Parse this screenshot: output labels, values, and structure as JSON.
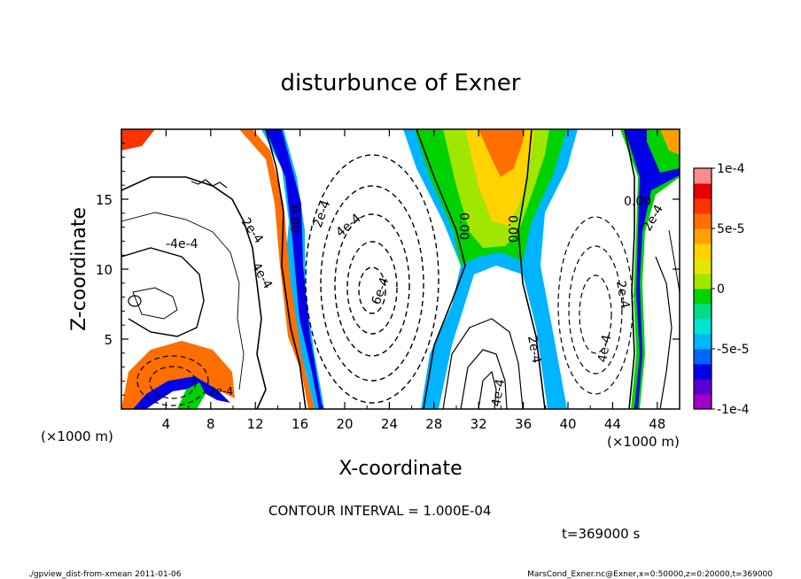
{
  "chart_data": {
    "type": "heatmap",
    "title": "disturbunce of Exner",
    "xlabel": "X-coordinate",
    "ylabel": "Z-coordinate",
    "x_unit_left": "(×1000 m)",
    "x_unit_right": "(×1000 m)",
    "xlim": [
      0,
      50
    ],
    "ylim": [
      0,
      20
    ],
    "x_ticks": [
      4,
      8,
      12,
      16,
      20,
      24,
      28,
      32,
      36,
      40,
      44,
      48
    ],
    "y_ticks": [
      5,
      10,
      15
    ],
    "colorbar": {
      "range": [
        -0.0001,
        0.0001
      ],
      "tick_labels": [
        "1e-4",
        "5e-5",
        "0",
        "-5e-5",
        "-1e-4"
      ],
      "colors": [
        "#a000c8",
        "#5a00d2",
        "#0000e6",
        "#0064ff",
        "#00b4ff",
        "#00e6d2",
        "#00dc8c",
        "#00d200",
        "#a0e600",
        "#e6e600",
        "#ffd200",
        "#ffa000",
        "#ff6e00",
        "#ff3200",
        "#e60000",
        "#ff8c8c"
      ]
    },
    "contour_labels": [
      "-4e-4",
      "2e-4",
      "4e-4",
      "0.00",
      "2e-4",
      "4e-4",
      "6e-4",
      "0.00",
      "0.00",
      "0.00",
      "2e-4",
      "4e-4",
      "2e-4",
      "4e-4",
      "2e-4",
      "2e-4"
    ],
    "contour_interval": "CONTOUR INTERVAL = 1.000E-04",
    "time": "t=369000 s"
  },
  "footer": {
    "left": "./gpview_dist-from-xmean  2011-01-06",
    "right": "MarsCond_Exner.nc@Exner,x=0:50000,z=0:20000,t=369000"
  }
}
